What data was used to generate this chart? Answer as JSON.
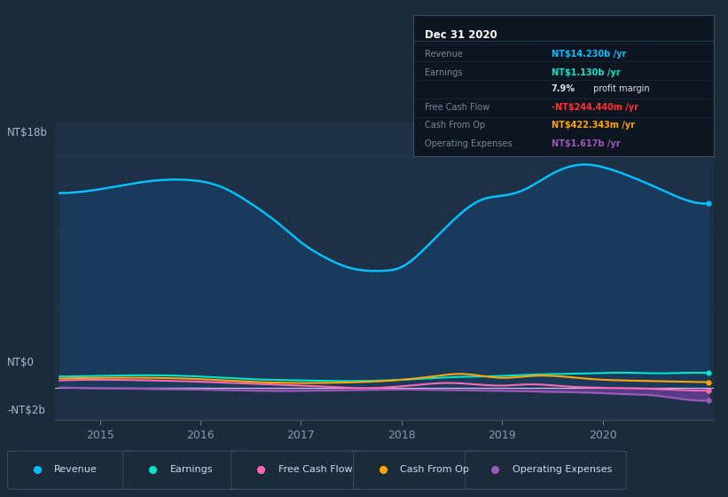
{
  "bg_color": "#1c2b3a",
  "plot_bg_color": "#1e3045",
  "grid_color": "#263d52",
  "title_label": "NT$18b",
  "ylabel_bottom": "-NT$2b",
  "ylabel_zero": "NT$0",
  "x_ticks": [
    2015,
    2016,
    2017,
    2018,
    2019,
    2020
  ],
  "ylim": [
    -2.5,
    20.5
  ],
  "legend_items": [
    {
      "label": "Revenue",
      "color": "#00bfff"
    },
    {
      "label": "Earnings",
      "color": "#00e5cc"
    },
    {
      "label": "Free Cash Flow",
      "color": "#ff69b4"
    },
    {
      "label": "Cash From Op",
      "color": "#ffa500"
    },
    {
      "label": "Operating Expenses",
      "color": "#9b59b6"
    }
  ],
  "info_box": {
    "title": "Dec 31 2020",
    "bg_color": "#0d1520",
    "border_color": "#3a4f63"
  },
  "revenue_x": [
    2014.6,
    2015.0,
    2015.3,
    2015.6,
    2015.9,
    2016.2,
    2016.5,
    2016.8,
    2017.0,
    2017.2,
    2017.5,
    2017.8,
    2018.0,
    2018.2,
    2018.5,
    2018.8,
    2019.0,
    2019.2,
    2019.5,
    2019.8,
    2020.0,
    2020.3,
    2020.6,
    2020.9,
    2021.05
  ],
  "revenue_y": [
    15.0,
    15.3,
    15.7,
    16.0,
    16.0,
    15.5,
    14.2,
    12.5,
    11.2,
    10.2,
    9.2,
    9.0,
    9.3,
    10.5,
    12.8,
    14.5,
    14.8,
    15.2,
    16.5,
    17.2,
    17.0,
    16.2,
    15.2,
    14.3,
    14.2
  ],
  "earnings_x": [
    2014.6,
    2015.0,
    2015.5,
    2016.0,
    2016.5,
    2017.0,
    2017.5,
    2018.0,
    2018.5,
    2019.0,
    2019.3,
    2019.6,
    2019.9,
    2020.2,
    2020.5,
    2020.8,
    2021.05
  ],
  "earnings_y": [
    0.85,
    0.9,
    0.95,
    0.85,
    0.65,
    0.55,
    0.5,
    0.6,
    0.8,
    0.9,
    1.0,
    1.05,
    1.1,
    1.15,
    1.1,
    1.13,
    1.13
  ],
  "free_cash_flow_x": [
    2014.6,
    2015.0,
    2015.5,
    2016.0,
    2016.5,
    2017.0,
    2017.3,
    2017.6,
    2018.0,
    2018.5,
    2019.0,
    2019.3,
    2019.6,
    2019.9,
    2020.2,
    2020.5,
    2020.8,
    2021.05
  ],
  "free_cash_flow_y": [
    0.55,
    0.6,
    0.55,
    0.45,
    0.3,
    0.15,
    0.05,
    -0.05,
    0.1,
    0.35,
    0.15,
    0.25,
    0.1,
    0.0,
    -0.05,
    -0.1,
    -0.2,
    -0.24
  ],
  "cash_from_op_x": [
    2014.6,
    2015.0,
    2015.5,
    2016.0,
    2016.5,
    2017.0,
    2017.5,
    2018.0,
    2018.3,
    2018.6,
    2019.0,
    2019.3,
    2019.6,
    2019.9,
    2020.2,
    2020.5,
    2020.8,
    2021.05
  ],
  "cash_from_op_y": [
    0.7,
    0.75,
    0.75,
    0.65,
    0.45,
    0.35,
    0.4,
    0.6,
    0.85,
    1.05,
    0.75,
    0.9,
    0.85,
    0.65,
    0.55,
    0.5,
    0.45,
    0.42
  ],
  "op_exp_x": [
    2014.6,
    2015.0,
    2015.5,
    2016.0,
    2016.3,
    2016.6,
    2017.0,
    2017.5,
    2018.0,
    2018.5,
    2019.0,
    2019.3,
    2019.6,
    2019.9,
    2020.2,
    2020.5,
    2020.8,
    2021.05
  ],
  "op_exp_y": [
    0.0,
    -0.05,
    -0.1,
    -0.15,
    -0.2,
    -0.25,
    -0.25,
    -0.2,
    -0.15,
    -0.2,
    -0.25,
    -0.3,
    -0.35,
    -0.4,
    -0.5,
    -0.6,
    -0.9,
    -1.0
  ],
  "op_exp_fill_x": [
    2014.6,
    2015.0,
    2015.5,
    2016.0,
    2016.3,
    2016.6,
    2017.0,
    2017.5,
    2018.0,
    2018.5,
    2019.0,
    2019.3,
    2019.6,
    2019.9,
    2020.2,
    2020.5,
    2020.8,
    2021.05
  ],
  "op_exp_fill_y": [
    0.0,
    -0.05,
    -0.1,
    -0.15,
    -0.2,
    -0.25,
    -0.25,
    -0.2,
    -0.15,
    -0.2,
    -0.25,
    -0.3,
    -0.35,
    -0.4,
    -0.5,
    -0.6,
    -0.9,
    -1.0
  ],
  "gray_fill_end_x": 2016.1
}
